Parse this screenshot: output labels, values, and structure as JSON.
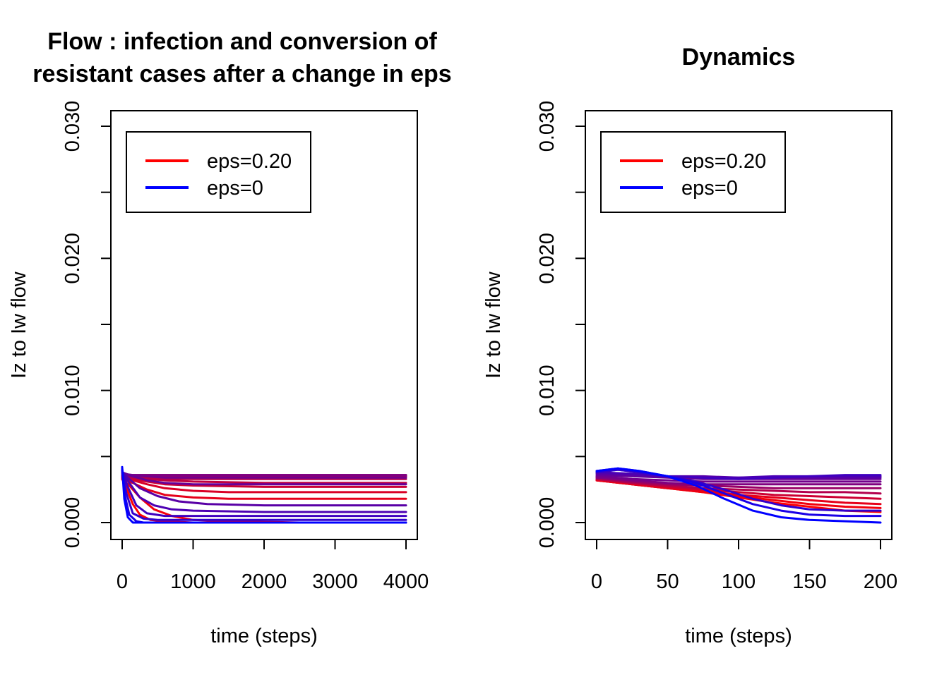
{
  "chart_data": [
    {
      "type": "line",
      "title_lines": [
        "Flow : infection and conversion of",
        "resistant cases after a change in eps"
      ],
      "xlabel": "time (steps)",
      "ylabel": "Iz to Iw flow",
      "xlim": [
        0,
        4000
      ],
      "ylim": [
        0,
        0.03
      ],
      "x_ticks": [
        "0",
        "1000",
        "2000",
        "3000",
        "4000"
      ],
      "y_ticks": [
        "0.000",
        "0.010",
        "0.020",
        "0.030"
      ],
      "legend": {
        "position": "top-left",
        "entries": [
          {
            "label": "eps=0.20",
            "color": "#ff0000"
          },
          {
            "label": "eps=0",
            "color": "#0000ff"
          }
        ]
      },
      "grid": false,
      "series_note": "family of curves colored from red to blue",
      "series": [
        {
          "color": "#ff0000",
          "x": [
            0,
            60,
            150,
            250,
            400,
            600,
            1000,
            1500,
            2500,
            4000
          ],
          "y": [
            0.0033,
            0.0026,
            0.0014,
            0.0006,
            0.0002,
            0.0001,
            0.0,
            0.0,
            0.0,
            0.0
          ]
        },
        {
          "color": "#f2000d",
          "x": [
            0,
            100,
            250,
            450,
            700,
            1000,
            1500,
            2500,
            4000
          ],
          "y": [
            0.0033,
            0.0028,
            0.0019,
            0.001,
            0.0005,
            0.0002,
            0.0001,
            0.0,
            0.0
          ]
        },
        {
          "color": "#e6001a",
          "x": [
            0,
            150,
            350,
            600,
            1000,
            1500,
            2500,
            4000
          ],
          "y": [
            0.0033,
            0.003,
            0.0025,
            0.0021,
            0.0019,
            0.0018,
            0.0018,
            0.0018
          ]
        },
        {
          "color": "#d90026",
          "x": [
            0,
            150,
            350,
            600,
            1000,
            1500,
            2500,
            4000
          ],
          "y": [
            0.0033,
            0.0032,
            0.0029,
            0.0026,
            0.0024,
            0.0023,
            0.0023,
            0.0023
          ]
        },
        {
          "color": "#cc0033",
          "x": [
            0,
            150,
            350,
            600,
            1000,
            2000,
            4000
          ],
          "y": [
            0.0034,
            0.0033,
            0.0031,
            0.0029,
            0.0028,
            0.0027,
            0.0027
          ]
        },
        {
          "color": "#bf0040",
          "x": [
            0,
            150,
            350,
            600,
            1000,
            2000,
            4000
          ],
          "y": [
            0.0034,
            0.0034,
            0.0033,
            0.0032,
            0.0031,
            0.003,
            0.003
          ]
        },
        {
          "color": "#b3004d",
          "x": [
            0,
            150,
            350,
            600,
            1000,
            2000,
            4000
          ],
          "y": [
            0.0034,
            0.0034,
            0.0034,
            0.0033,
            0.0033,
            0.0033,
            0.0033
          ]
        },
        {
          "color": "#a60059",
          "x": [
            0,
            200,
            500,
            1000,
            2000,
            4000
          ],
          "y": [
            0.0035,
            0.0035,
            0.0035,
            0.0035,
            0.0035,
            0.0035
          ]
        },
        {
          "color": "#990066",
          "x": [
            0,
            200,
            500,
            1000,
            2000,
            4000
          ],
          "y": [
            0.0035,
            0.0035,
            0.0035,
            0.0035,
            0.0035,
            0.0035
          ]
        },
        {
          "color": "#8c0073",
          "x": [
            0,
            200,
            500,
            1000,
            2000,
            4000
          ],
          "y": [
            0.0036,
            0.0036,
            0.0036,
            0.0036,
            0.0036,
            0.0036
          ]
        },
        {
          "color": "#800080",
          "x": [
            0,
            200,
            500,
            1000,
            2000,
            4000
          ],
          "y": [
            0.0036,
            0.0036,
            0.0036,
            0.0036,
            0.0036,
            0.0036
          ]
        },
        {
          "color": "#73008c",
          "x": [
            0,
            150,
            350,
            600,
            1000,
            2000,
            4000
          ],
          "y": [
            0.0037,
            0.0036,
            0.0035,
            0.0034,
            0.0034,
            0.0034,
            0.0034
          ]
        },
        {
          "color": "#660099",
          "x": [
            0,
            150,
            350,
            600,
            1000,
            2000,
            4000
          ],
          "y": [
            0.0038,
            0.0035,
            0.0032,
            0.003,
            0.0029,
            0.0029,
            0.0029
          ]
        },
        {
          "color": "#5900a6",
          "x": [
            0,
            100,
            250,
            500,
            800,
            1200,
            2000,
            4000
          ],
          "y": [
            0.0038,
            0.0033,
            0.0026,
            0.002,
            0.0016,
            0.0014,
            0.0013,
            0.0013
          ]
        },
        {
          "color": "#4d00b3",
          "x": [
            0,
            100,
            250,
            450,
            700,
            1000,
            2000,
            4000
          ],
          "y": [
            0.0039,
            0.003,
            0.0019,
            0.0013,
            0.001,
            0.0009,
            0.0008,
            0.0008
          ]
        },
        {
          "color": "#4000bf",
          "x": [
            0,
            80,
            200,
            350,
            600,
            1000,
            2000,
            4000
          ],
          "y": [
            0.0039,
            0.0027,
            0.0013,
            0.0007,
            0.0005,
            0.0005,
            0.0005,
            0.0005
          ]
        },
        {
          "color": "#3300cc",
          "x": [
            0,
            60,
            150,
            300,
            500,
            800,
            1500,
            4000
          ],
          "y": [
            0.004,
            0.0022,
            0.0007,
            0.0003,
            0.0002,
            0.0002,
            0.0002,
            0.0002
          ]
        },
        {
          "color": "#1a00e6",
          "x": [
            0,
            40,
            100,
            200,
            300,
            500,
            1000,
            4000
          ],
          "y": [
            0.0041,
            0.002,
            0.0006,
            0.0001,
            0.0,
            0.0,
            0.0,
            0.0
          ]
        },
        {
          "color": "#0000ff",
          "x": [
            0,
            30,
            80,
            150,
            250,
            400,
            800,
            4000
          ],
          "y": [
            0.0042,
            0.0018,
            0.0004,
            0.0,
            0.0,
            0.0,
            0.0,
            0.0
          ]
        }
      ]
    },
    {
      "type": "line",
      "title_lines": [
        "Dynamics"
      ],
      "xlabel": "time (steps)",
      "ylabel": "Iz to Iw flow",
      "xlim": [
        0,
        200
      ],
      "ylim": [
        0,
        0.03
      ],
      "x_ticks": [
        "0",
        "50",
        "100",
        "150",
        "200"
      ],
      "y_ticks": [
        "0.000",
        "0.010",
        "0.020",
        "0.030"
      ],
      "legend": {
        "position": "top-left",
        "entries": [
          {
            "label": "eps=0.20",
            "color": "#ff0000"
          },
          {
            "label": "eps=0",
            "color": "#0000ff"
          }
        ]
      },
      "grid": false,
      "series_note": "family of curves colored from red to blue",
      "series": [
        {
          "color": "#ff0000",
          "x": [
            0,
            25,
            50,
            75,
            100,
            125,
            150,
            175,
            200
          ],
          "y": [
            0.0032,
            0.0029,
            0.0026,
            0.0023,
            0.0019,
            0.0015,
            0.0012,
            0.0009,
            0.0008
          ]
        },
        {
          "color": "#f2000d",
          "x": [
            0,
            25,
            50,
            75,
            100,
            125,
            150,
            175,
            200
          ],
          "y": [
            0.0032,
            0.0029,
            0.0026,
            0.0023,
            0.002,
            0.0017,
            0.0014,
            0.0012,
            0.0011
          ]
        },
        {
          "color": "#e6001a",
          "x": [
            0,
            25,
            50,
            75,
            100,
            125,
            150,
            175,
            200
          ],
          "y": [
            0.0032,
            0.0029,
            0.0026,
            0.0024,
            0.0021,
            0.0019,
            0.0017,
            0.0015,
            0.0014
          ]
        },
        {
          "color": "#cc0033",
          "x": [
            0,
            25,
            50,
            75,
            100,
            125,
            150,
            175,
            200
          ],
          "y": [
            0.0033,
            0.003,
            0.0027,
            0.0025,
            0.0023,
            0.0021,
            0.002,
            0.0019,
            0.0018
          ]
        },
        {
          "color": "#b3004d",
          "x": [
            0,
            25,
            50,
            75,
            100,
            125,
            150,
            175,
            200
          ],
          "y": [
            0.0033,
            0.003,
            0.0028,
            0.0026,
            0.0025,
            0.0024,
            0.0023,
            0.0023,
            0.0022
          ]
        },
        {
          "color": "#990066",
          "x": [
            0,
            25,
            50,
            75,
            100,
            125,
            150,
            175,
            200
          ],
          "y": [
            0.0034,
            0.0031,
            0.0029,
            0.0028,
            0.0027,
            0.0026,
            0.0026,
            0.0026,
            0.0026
          ]
        },
        {
          "color": "#800080",
          "x": [
            0,
            25,
            50,
            75,
            100,
            125,
            150,
            175,
            200
          ],
          "y": [
            0.0034,
            0.0032,
            0.003,
            0.0029,
            0.0029,
            0.0029,
            0.0029,
            0.0029,
            0.0029
          ]
        },
        {
          "color": "#73008c",
          "x": [
            0,
            25,
            50,
            75,
            100,
            125,
            150,
            175,
            200
          ],
          "y": [
            0.0035,
            0.0033,
            0.0032,
            0.0031,
            0.0031,
            0.0031,
            0.0031,
            0.0031,
            0.0031
          ]
        },
        {
          "color": "#660099",
          "x": [
            0,
            25,
            50,
            75,
            100,
            125,
            150,
            175,
            200
          ],
          "y": [
            0.0036,
            0.0035,
            0.0034,
            0.0033,
            0.0033,
            0.0033,
            0.0033,
            0.0033,
            0.0033
          ]
        },
        {
          "color": "#5900a6",
          "x": [
            0,
            25,
            50,
            75,
            100,
            125,
            150,
            175,
            200
          ],
          "y": [
            0.0037,
            0.0036,
            0.0035,
            0.0035,
            0.0034,
            0.0034,
            0.0034,
            0.0034,
            0.0034
          ]
        },
        {
          "color": "#4d00b3",
          "x": [
            0,
            25,
            50,
            75,
            100,
            125,
            150,
            175,
            200
          ],
          "y": [
            0.0038,
            0.0037,
            0.0035,
            0.0034,
            0.0034,
            0.0035,
            0.0035,
            0.0035,
            0.0035
          ]
        },
        {
          "color": "#4000bf",
          "x": [
            0,
            15,
            30,
            50,
            75,
            100,
            125,
            150,
            175,
            200
          ],
          "y": [
            0.0038,
            0.004,
            0.0038,
            0.0035,
            0.0034,
            0.0033,
            0.0034,
            0.0035,
            0.0036,
            0.0036
          ]
        },
        {
          "color": "#3300cc",
          "x": [
            0,
            15,
            30,
            50,
            70,
            90,
            110,
            130,
            150,
            175,
            200
          ],
          "y": [
            0.0038,
            0.004,
            0.0038,
            0.0035,
            0.0031,
            0.0025,
            0.0018,
            0.0013,
            0.001,
            0.0009,
            0.0009
          ]
        },
        {
          "color": "#1a00e6",
          "x": [
            0,
            15,
            30,
            50,
            70,
            90,
            110,
            130,
            150,
            175,
            200
          ],
          "y": [
            0.0039,
            0.0041,
            0.0039,
            0.0035,
            0.003,
            0.0022,
            0.0014,
            0.0009,
            0.0006,
            0.0005,
            0.0005
          ]
        },
        {
          "color": "#0000ff",
          "x": [
            0,
            15,
            30,
            50,
            70,
            90,
            110,
            130,
            150,
            175,
            200
          ],
          "y": [
            0.0039,
            0.0041,
            0.0039,
            0.0035,
            0.0028,
            0.0018,
            0.0009,
            0.0004,
            0.0002,
            0.0001,
            0.0
          ]
        }
      ]
    }
  ]
}
